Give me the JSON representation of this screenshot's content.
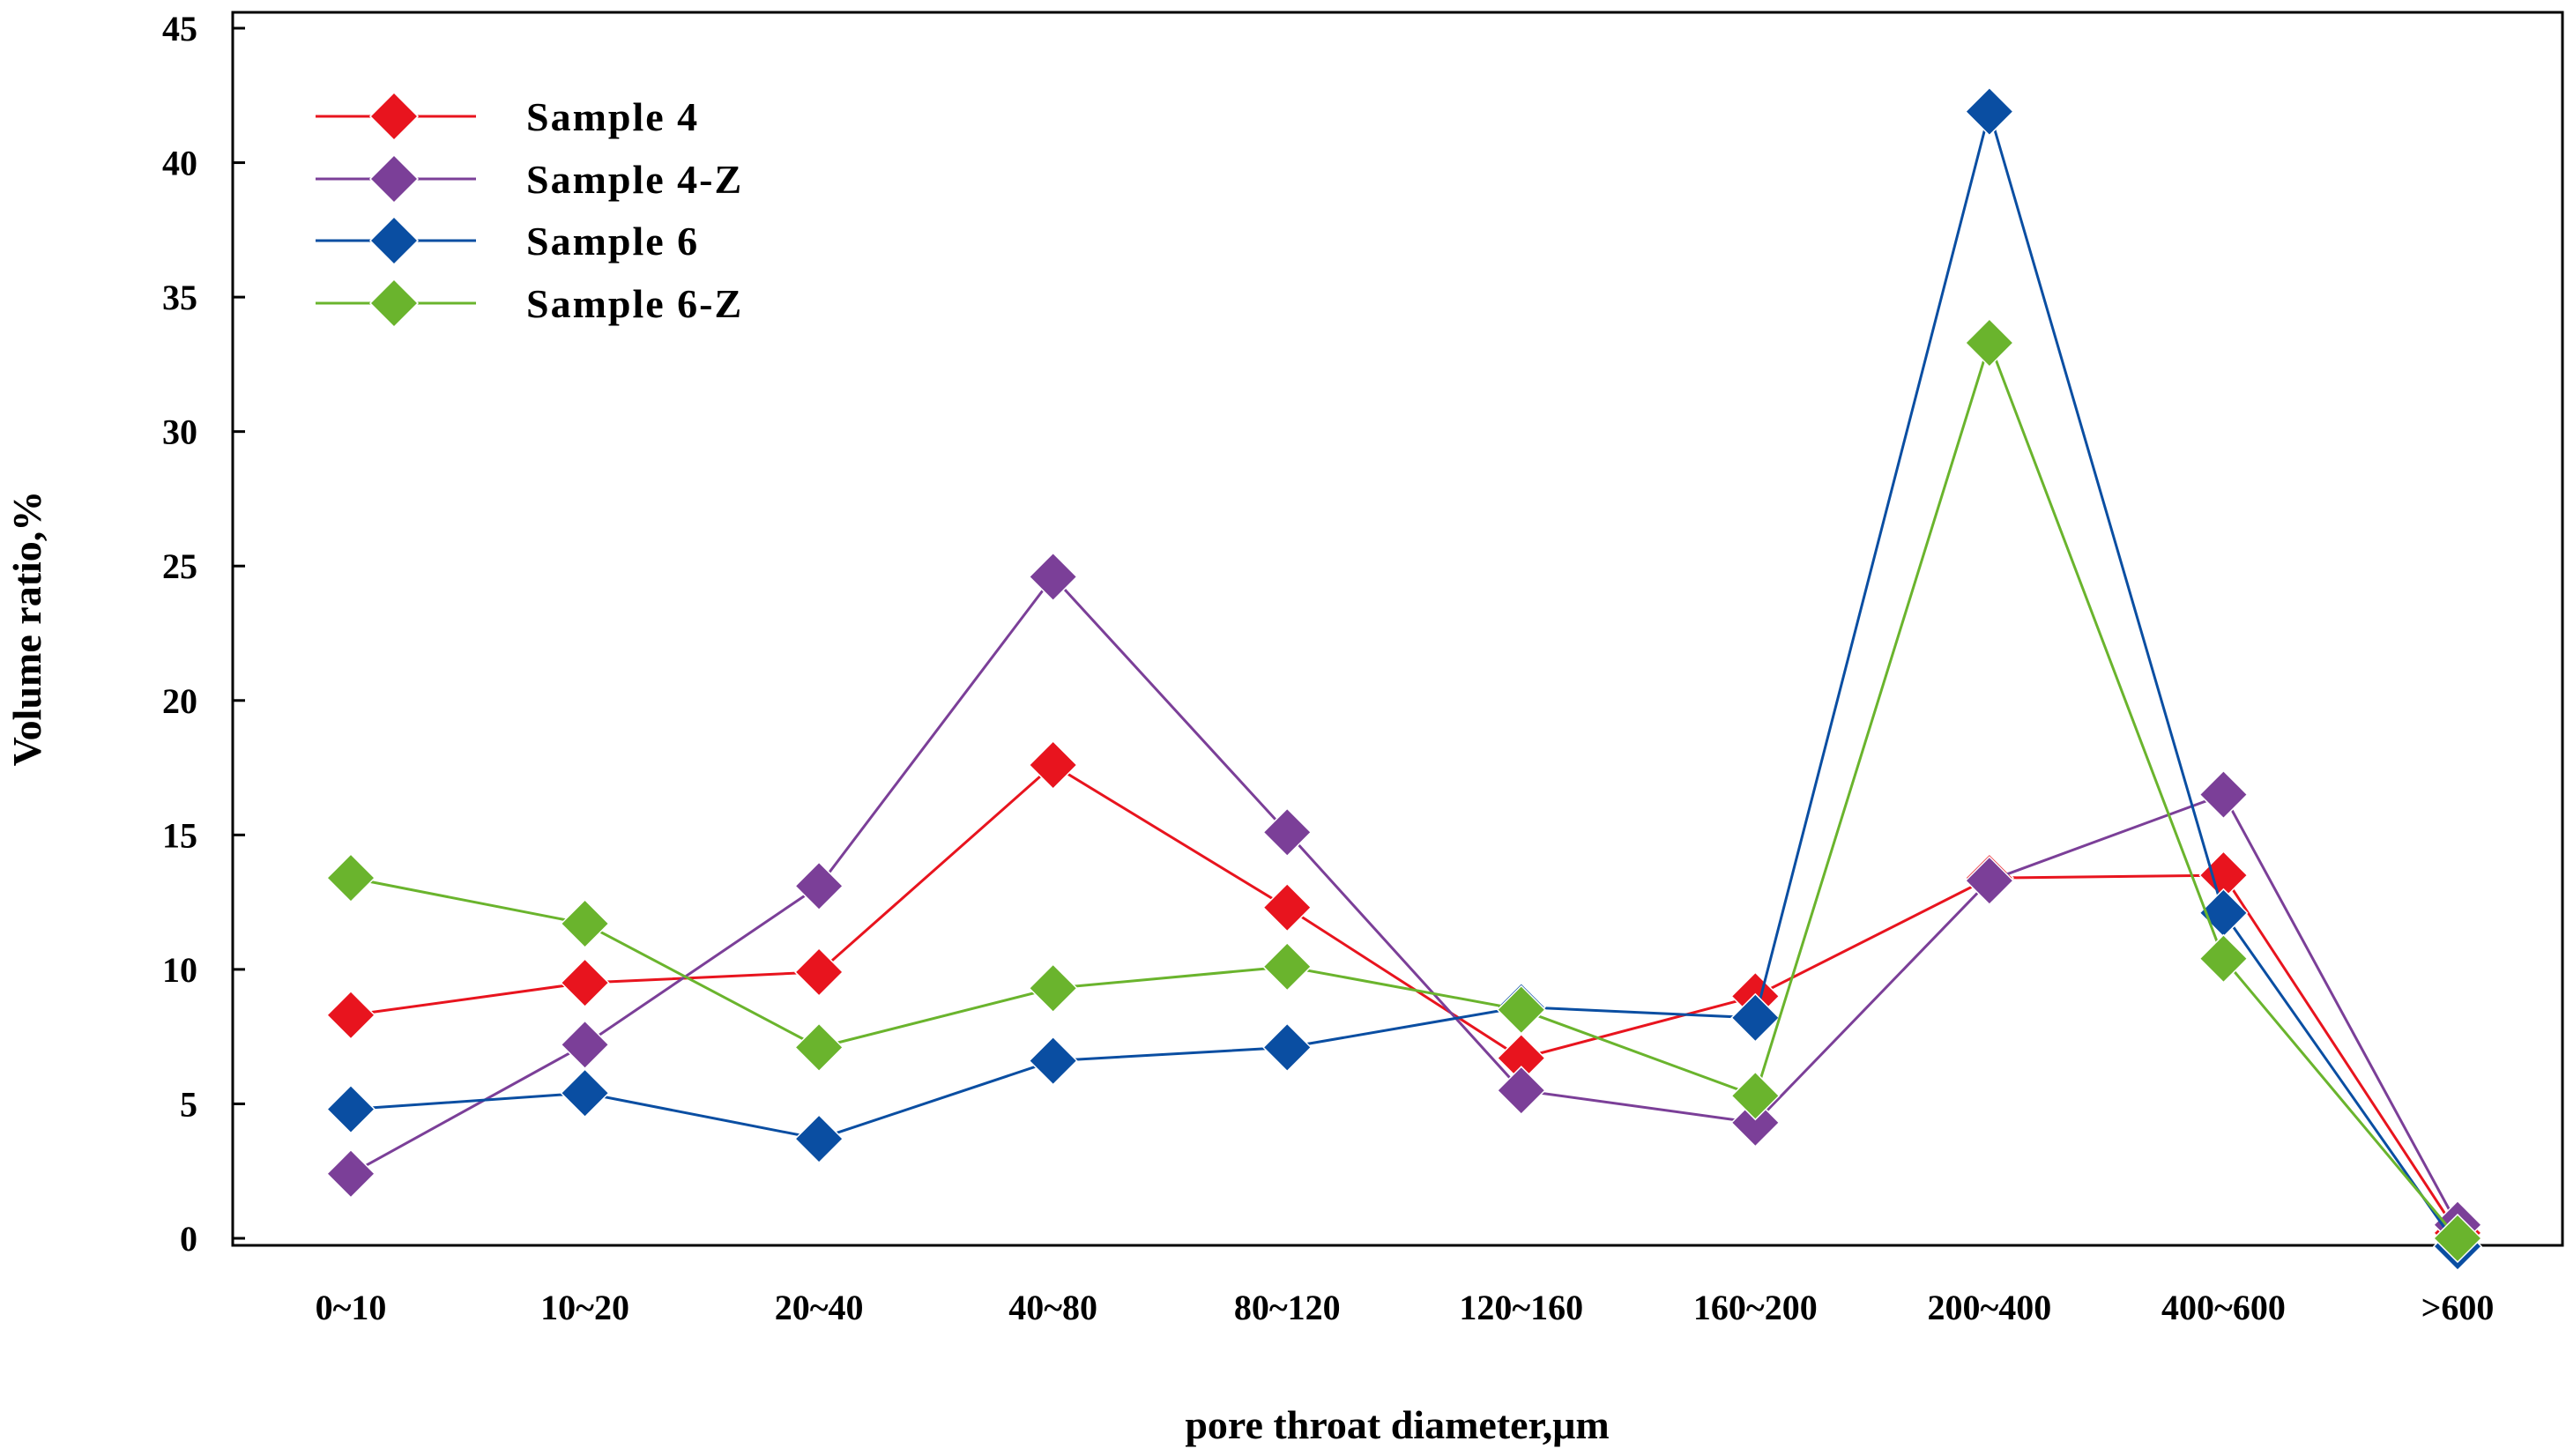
{
  "chart_data": {
    "type": "line",
    "title": "",
    "xlabel": "pore throat diameter,μm",
    "ylabel": "Volume ratio,%",
    "ylim": [
      0,
      45
    ],
    "yticks": [
      0,
      5,
      10,
      15,
      20,
      25,
      30,
      35,
      40,
      45
    ],
    "grid": false,
    "legend_position": "top-left",
    "categories": [
      "0~10",
      "10~20",
      "20~40",
      "40~80",
      "80~120",
      "120~160",
      "160~200",
      "200~400",
      "400~600",
      ">600"
    ],
    "series": [
      {
        "name": "Sample 4",
        "color": "#e8141e",
        "values": [
          8.3,
          9.5,
          9.9,
          17.6,
          12.3,
          6.7,
          9.0,
          13.4,
          13.5,
          0.2
        ]
      },
      {
        "name": "Sample 4-Z",
        "color": "#7b3f98",
        "values": [
          2.4,
          7.2,
          13.1,
          24.6,
          15.1,
          5.5,
          4.3,
          13.3,
          16.5,
          0.5
        ]
      },
      {
        "name": "Sample 6",
        "color": "#0a4ea2",
        "values": [
          4.8,
          5.4,
          3.7,
          6.6,
          7.1,
          8.6,
          8.2,
          41.9,
          12.1,
          -0.3
        ]
      },
      {
        "name": "Sample 6-Z",
        "color": "#6ab42d",
        "values": [
          13.4,
          11.7,
          7.1,
          9.3,
          10.1,
          8.5,
          5.3,
          33.3,
          10.4,
          0.0
        ]
      }
    ]
  }
}
